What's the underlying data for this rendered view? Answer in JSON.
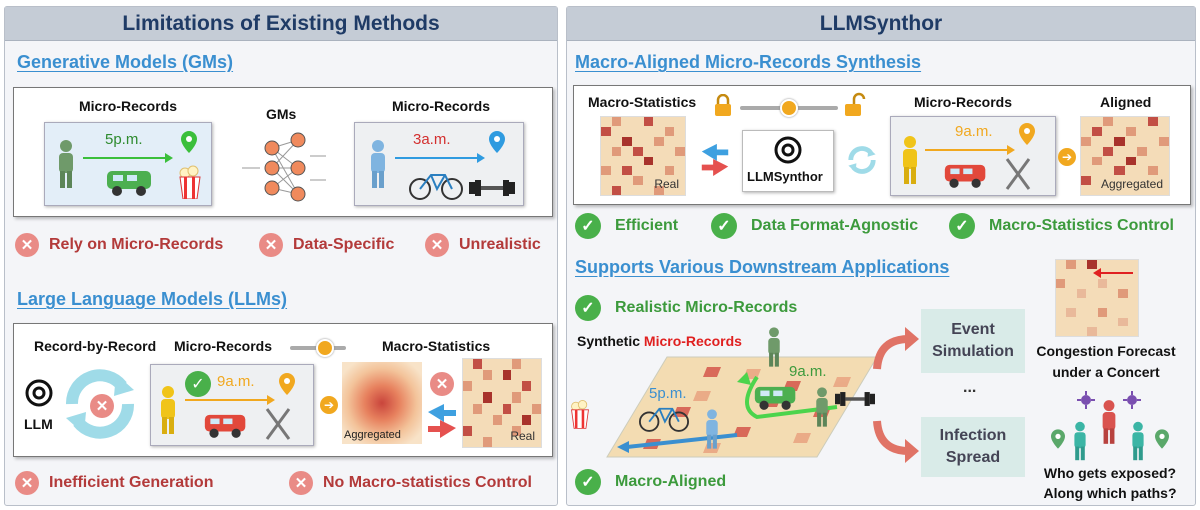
{
  "left": {
    "header": "Limitations of Existing Methods",
    "gms_title": "Generative Models (GMs)",
    "gm_box": {
      "micro1_label": "Micro-Records",
      "time1": "5p.m.",
      "gms_label": "GMs",
      "micro2_label": "Micro-Records",
      "time2": "3a.m."
    },
    "gm_issues": [
      "Rely on Micro-Records",
      "Data-Specific",
      "Unrealistic"
    ],
    "llms_title": "Large Language Models (LLMs)",
    "llm_box": {
      "rbr_label": "Record-by-Record",
      "llm_label": "LLM",
      "micro_label": "Micro-Records",
      "time": "9a.m.",
      "macro_label": "Macro-Statistics",
      "aggregated": "Aggregated",
      "real": "Real"
    },
    "llm_issues": [
      "Inefficient Generation",
      "No Macro-statistics Control"
    ]
  },
  "right": {
    "header": "LLMSynthor",
    "synth_title": "Macro-Aligned Micro-Records Synthesis",
    "synth_box": {
      "macro_label": "Macro-Statistics",
      "real": "Real",
      "synthor_label": "LLMSynthor",
      "micro_label": "Micro-Records",
      "time": "9a.m.",
      "aligned_label": "Aligned",
      "aggregated": "Aggregated"
    },
    "benefits": [
      "Efficient",
      "Data Format-Agnostic",
      "Macro-Statistics Control"
    ],
    "apps_title": "Supports Various Downstream Applications",
    "realistic": "Realistic Micro-Records",
    "synthetic_prefix": "Synthetic ",
    "synthetic_suffix": "Micro-Records",
    "time_pm": "5p.m.",
    "time_am": "9a.m.",
    "macro_aligned": "Macro-Aligned",
    "event_sim": "Event Simulation",
    "ellipsis": "...",
    "infection": "Infection Spread",
    "congestion": "Congestion Forecast under a Concert",
    "exposed": "Who gets exposed? Along which paths?"
  },
  "colors": {
    "title_blue": "#3a8fd0",
    "header_navy": "#1f3b66",
    "bad_red": "#b33a3a",
    "good_green": "#3c9a3c",
    "accent_orange": "#f1a81f",
    "red_micro": "#e02020"
  },
  "icons": [
    "person-icon",
    "van-icon",
    "bicycle-icon",
    "dumbbell-icon",
    "location-pin-icon",
    "popcorn-icon",
    "fork-knife-icon",
    "neural-net-icon",
    "openai-logo-icon",
    "lock-icon",
    "unlock-icon",
    "cycle-arrows-icon",
    "swap-arrows-icon",
    "check-icon",
    "cross-icon",
    "virus-icon"
  ]
}
